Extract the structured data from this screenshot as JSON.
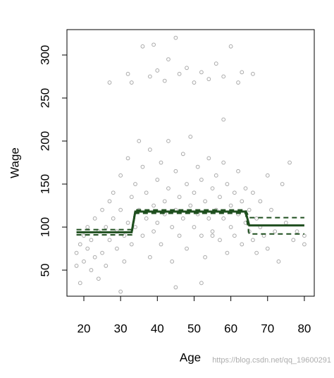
{
  "chart_data": {
    "type": "scatter",
    "xlabel": "Age",
    "ylabel": "Wage",
    "xlim": [
      15.4,
      82.7
    ],
    "ylim": [
      19.7,
      329.5
    ],
    "xticks": [
      20,
      30,
      40,
      50,
      60,
      70,
      80
    ],
    "yticks": [
      50,
      100,
      150,
      200,
      250,
      300
    ],
    "point_color": "#aaaaaa",
    "x": [
      18,
      18,
      19,
      19,
      20,
      20,
      21,
      21,
      22,
      22,
      23,
      23,
      24,
      24,
      25,
      25,
      26,
      26,
      27,
      27,
      28,
      28,
      29,
      29,
      30,
      30,
      31,
      31,
      32,
      32,
      33,
      33,
      34,
      34,
      35,
      35,
      36,
      36,
      37,
      37,
      38,
      38,
      39,
      39,
      40,
      40,
      41,
      41,
      42,
      42,
      43,
      43,
      44,
      44,
      45,
      45,
      46,
      46,
      47,
      47,
      48,
      48,
      49,
      49,
      50,
      50,
      51,
      51,
      52,
      52,
      53,
      53,
      54,
      54,
      55,
      55,
      56,
      56,
      57,
      57,
      58,
      58,
      59,
      59,
      60,
      60,
      61,
      61,
      62,
      62,
      63,
      63,
      64,
      64,
      65,
      65,
      66,
      66,
      67,
      67,
      68,
      68,
      69,
      70,
      70,
      71,
      72,
      73,
      74,
      75,
      76,
      77,
      78,
      80,
      80,
      32,
      33,
      36,
      38,
      39,
      40,
      42,
      43,
      45,
      46,
      48,
      50,
      52,
      54,
      56,
      58,
      60,
      62,
      63,
      66,
      27,
      58,
      55,
      30,
      45,
      52
    ],
    "values": [
      70,
      55,
      80,
      35,
      90,
      60,
      75,
      100,
      50,
      85,
      110,
      65,
      95,
      40,
      120,
      70,
      100,
      55,
      130,
      85,
      110,
      140,
      75,
      95,
      160,
      120,
      90,
      60,
      105,
      180,
      135,
      80,
      150,
      100,
      200,
      120,
      90,
      170,
      140,
      110,
      65,
      190,
      125,
      95,
      155,
      105,
      175,
      80,
      130,
      115,
      200,
      145,
      100,
      60,
      165,
      120,
      135,
      90,
      185,
      110,
      150,
      75,
      125,
      205,
      140,
      100,
      170,
      115,
      90,
      155,
      130,
      65,
      180,
      110,
      145,
      95,
      120,
      160,
      85,
      135,
      110,
      175,
      150,
      70,
      125,
      100,
      140,
      90,
      165,
      115,
      80,
      130,
      105,
      145,
      95,
      120,
      85,
      140,
      110,
      70,
      100,
      130,
      90,
      160,
      75,
      120,
      95,
      60,
      150,
      105,
      175,
      85,
      95,
      90,
      80,
      278,
      268,
      310,
      275,
      312,
      282,
      270,
      295,
      320,
      278,
      285,
      268,
      280,
      272,
      290,
      275,
      310,
      268,
      280,
      278,
      268,
      225,
      90,
      25,
      30,
      35
    ],
    "lines": [
      {
        "x": [
          18,
          33,
          34,
          64,
          65,
          80
        ],
        "values": [
          94,
          94,
          118,
          118,
          102,
          102
        ],
        "color": "#1f4f1f",
        "dashed": false
      },
      {
        "x": [
          18,
          33,
          34,
          64,
          65,
          80
        ],
        "values": [
          97,
          97,
          120,
          120,
          111,
          111
        ],
        "color": "#1f4f1f",
        "dashed": true
      },
      {
        "x": [
          18,
          33,
          34,
          64,
          65,
          80
        ],
        "values": [
          91,
          91,
          116,
          116,
          92,
          92
        ],
        "color": "#1f4f1f",
        "dashed": true
      }
    ],
    "watermark": "https://blog.csdn.net/qq_19600291"
  }
}
